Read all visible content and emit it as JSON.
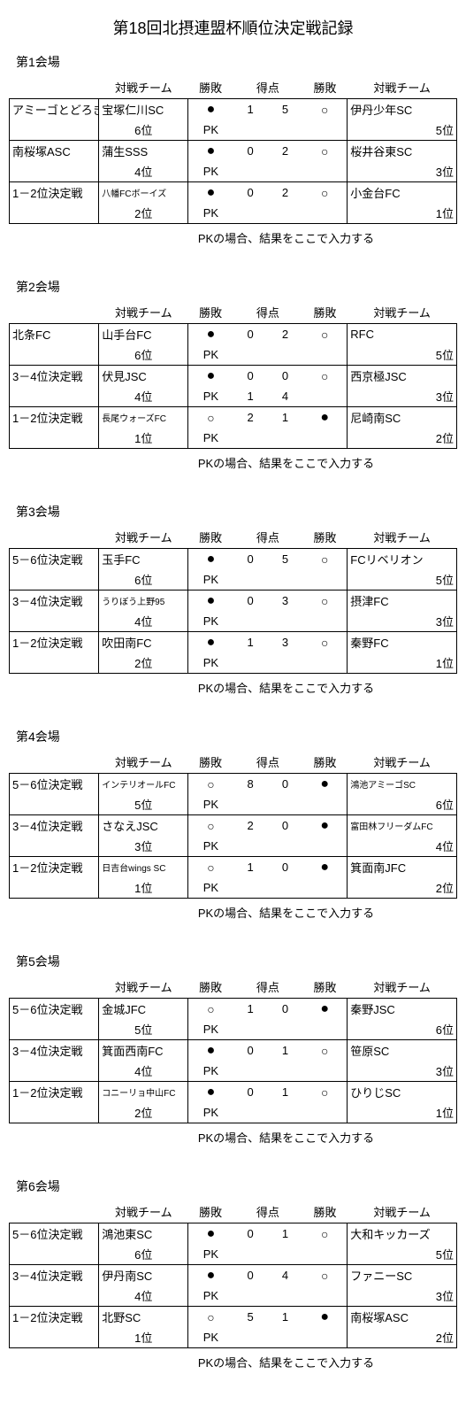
{
  "title": "第18回北摂連盟杯順位決定戦記録",
  "headers": {
    "team_l": "対戦チーム",
    "wl_l": "勝敗",
    "score": "得点",
    "wl_r": "勝敗",
    "team_r": "対戦チーム"
  },
  "pk_label": "PK",
  "pk_note": "PKの場合、結果をここで入力する",
  "venues": [
    {
      "label": "第1会場",
      "matches": [
        {
          "l_label": "アミーゴとどろき",
          "l_team": "宝塚仁川SC",
          "l_team_small": false,
          "l_rank": "6位",
          "l_mark": "●",
          "l_score": "1",
          "r_score": "5",
          "r_mark": "○",
          "r_team": "伊丹少年SC",
          "r_team_small": false,
          "r_rank": "5位",
          "pk_l": "",
          "pk_r": ""
        },
        {
          "l_label": "南桜塚ASC",
          "l_team": "蒲生SSS",
          "l_team_small": false,
          "l_rank": "4位",
          "l_mark": "●",
          "l_score": "0",
          "r_score": "2",
          "r_mark": "○",
          "r_team": "桜井谷東SC",
          "r_team_small": false,
          "r_rank": "3位",
          "pk_l": "",
          "pk_r": ""
        },
        {
          "l_label": "1－2位決定戦",
          "l_team": "八幡FCボーイズ",
          "l_team_small": true,
          "l_rank": "2位",
          "l_mark": "●",
          "l_score": "0",
          "r_score": "2",
          "r_mark": "○",
          "r_team": "小金台FC",
          "r_team_small": false,
          "r_rank": "1位",
          "pk_l": "",
          "pk_r": ""
        }
      ]
    },
    {
      "label": "第2会場",
      "matches": [
        {
          "l_label": "北条FC",
          "l_team": "山手台FC",
          "l_team_small": false,
          "l_rank": "6位",
          "l_mark": "●",
          "l_score": "0",
          "r_score": "2",
          "r_mark": "○",
          "r_team": "RFC",
          "r_team_small": false,
          "r_rank": "5位",
          "pk_l": "",
          "pk_r": ""
        },
        {
          "l_label": "3－4位決定戦",
          "l_team": "伏見JSC",
          "l_team_small": false,
          "l_rank": "4位",
          "l_mark": "●",
          "l_score": "0",
          "r_score": "0",
          "r_mark": "○",
          "r_team": "西京極JSC",
          "r_team_small": false,
          "r_rank": "3位",
          "pk_l": "1",
          "pk_r": "4"
        },
        {
          "l_label": "1－2位決定戦",
          "l_team": "長尾ウォーズFC",
          "l_team_small": true,
          "l_rank": "1位",
          "l_mark": "○",
          "l_score": "2",
          "r_score": "1",
          "r_mark": "●",
          "r_team": "尼崎南SC",
          "r_team_small": false,
          "r_rank": "2位",
          "pk_l": "",
          "pk_r": ""
        }
      ]
    },
    {
      "label": "第3会場",
      "matches": [
        {
          "l_label": "5－6位決定戦",
          "l_team": "玉手FC",
          "l_team_small": false,
          "l_rank": "6位",
          "l_mark": "●",
          "l_score": "0",
          "r_score": "5",
          "r_mark": "○",
          "r_team": "FCリベリオン",
          "r_team_small": false,
          "r_rank": "5位",
          "pk_l": "",
          "pk_r": ""
        },
        {
          "l_label": "3－4位決定戦",
          "l_team": "うりぼう上野95",
          "l_team_small": true,
          "l_rank": "4位",
          "l_mark": "●",
          "l_score": "0",
          "r_score": "3",
          "r_mark": "○",
          "r_team": "摂津FC",
          "r_team_small": false,
          "r_rank": "3位",
          "pk_l": "",
          "pk_r": ""
        },
        {
          "l_label": "1－2位決定戦",
          "l_team": "吹田南FC",
          "l_team_small": false,
          "l_rank": "2位",
          "l_mark": "●",
          "l_score": "1",
          "r_score": "3",
          "r_mark": "○",
          "r_team": "秦野FC",
          "r_team_small": false,
          "r_rank": "1位",
          "pk_l": "",
          "pk_r": ""
        }
      ]
    },
    {
      "label": "第4会場",
      "matches": [
        {
          "l_label": "5－6位決定戦",
          "l_team": "インテリオールFC",
          "l_team_small": true,
          "l_rank": "5位",
          "l_mark": "○",
          "l_score": "8",
          "r_score": "0",
          "r_mark": "●",
          "r_team": "鴻池アミーゴSC",
          "r_team_small": true,
          "r_rank": "6位",
          "pk_l": "",
          "pk_r": ""
        },
        {
          "l_label": "3－4位決定戦",
          "l_team": "さなえJSC",
          "l_team_small": false,
          "l_rank": "3位",
          "l_mark": "○",
          "l_score": "2",
          "r_score": "0",
          "r_mark": "●",
          "r_team": "富田林フリーダムFC",
          "r_team_small": true,
          "r_rank": "4位",
          "pk_l": "",
          "pk_r": ""
        },
        {
          "l_label": "1－2位決定戦",
          "l_team": "日吉台wings  SC",
          "l_team_small": true,
          "l_rank": "1位",
          "l_mark": "○",
          "l_score": "1",
          "r_score": "0",
          "r_mark": "●",
          "r_team": "箕面南JFC",
          "r_team_small": false,
          "r_rank": "2位",
          "pk_l": "",
          "pk_r": ""
        }
      ]
    },
    {
      "label": "第5会場",
      "matches": [
        {
          "l_label": "5－6位決定戦",
          "l_team": "金城JFC",
          "l_team_small": false,
          "l_rank": "5位",
          "l_mark": "○",
          "l_score": "1",
          "r_score": "0",
          "r_mark": "●",
          "r_team": "秦野JSC",
          "r_team_small": false,
          "r_rank": "6位",
          "pk_l": "",
          "pk_r": ""
        },
        {
          "l_label": "3－4位決定戦",
          "l_team": "箕面西南FC",
          "l_team_small": false,
          "l_rank": "4位",
          "l_mark": "●",
          "l_score": "0",
          "r_score": "1",
          "r_mark": "○",
          "r_team": "笹原SC",
          "r_team_small": false,
          "r_rank": "3位",
          "pk_l": "",
          "pk_r": ""
        },
        {
          "l_label": "1－2位決定戦",
          "l_team": "コニーリョ中山FC",
          "l_team_small": true,
          "l_rank": "2位",
          "l_mark": "●",
          "l_score": "0",
          "r_score": "1",
          "r_mark": "○",
          "r_team": "ひりじSC",
          "r_team_small": false,
          "r_rank": "1位",
          "pk_l": "",
          "pk_r": ""
        }
      ]
    },
    {
      "label": "第6会場",
      "matches": [
        {
          "l_label": "5－6位決定戦",
          "l_team": "鴻池東SC",
          "l_team_small": false,
          "l_rank": "6位",
          "l_mark": "●",
          "l_score": "0",
          "r_score": "1",
          "r_mark": "○",
          "r_team": "大和キッカーズ",
          "r_team_small": false,
          "r_rank": "5位",
          "pk_l": "",
          "pk_r": ""
        },
        {
          "l_label": "3－4位決定戦",
          "l_team": "伊丹南SC",
          "l_team_small": false,
          "l_rank": "4位",
          "l_mark": "●",
          "l_score": "0",
          "r_score": "4",
          "r_mark": "○",
          "r_team": "ファニーSC",
          "r_team_small": false,
          "r_rank": "3位",
          "pk_l": "",
          "pk_r": ""
        },
        {
          "l_label": "1－2位決定戦",
          "l_team": "北野SC",
          "l_team_small": false,
          "l_rank": "1位",
          "l_mark": "○",
          "l_score": "5",
          "r_score": "1",
          "r_mark": "●",
          "r_team": "南桜塚ASC",
          "r_team_small": false,
          "r_rank": "2位",
          "pk_l": "",
          "pk_r": ""
        }
      ]
    }
  ]
}
